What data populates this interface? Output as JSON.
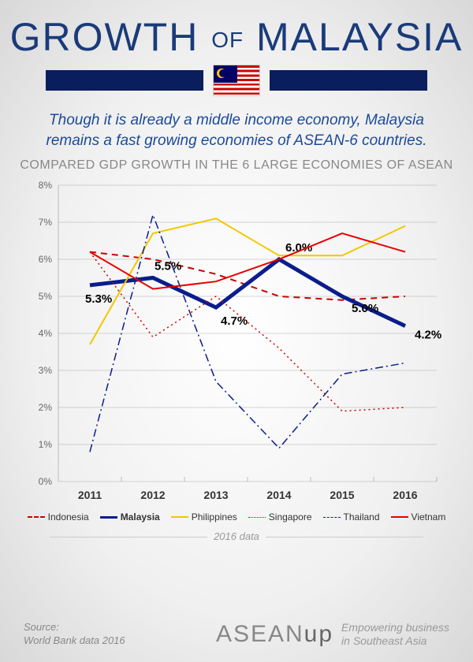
{
  "title_growth": "GROWTH",
  "title_of": "OF",
  "title_country": "MALAYSIA",
  "subtitle": "Though it is already a middle income economy, Malaysia remains a fast growing economies of ASEAN-6 countries.",
  "chart_title": "COMPARED GDP GROWTH IN THE 6 LARGE ECONOMIES OF ASEAN",
  "chart": {
    "type": "line",
    "years": [
      "2011",
      "2012",
      "2013",
      "2014",
      "2015",
      "2016"
    ],
    "ylim": [
      0,
      8
    ],
    "ytick_step": 1,
    "y_suffix": "%",
    "background_color": "transparent",
    "grid_color": "#999999",
    "axis_fontsize": 12,
    "xlabel_fontsize": 14,
    "data_label_fontsize": 15,
    "series": [
      {
        "name": "Indonesia",
        "color": "#cc0000",
        "width": 2,
        "dash": "8,6",
        "values": [
          6.2,
          6.0,
          5.6,
          5.0,
          4.9,
          5.0
        ]
      },
      {
        "name": "Malaysia",
        "color": "#0a1d8c",
        "width": 5,
        "dash": "",
        "values": [
          5.3,
          5.5,
          4.7,
          6.0,
          5.0,
          4.2
        ],
        "labels": [
          "5.3%",
          "5.5%",
          "4.7%",
          "6.0%",
          "5.0%",
          "4.2%"
        ]
      },
      {
        "name": "Philippines",
        "color": "#f2c800",
        "width": 2,
        "dash": "",
        "values": [
          3.7,
          6.7,
          7.1,
          6.1,
          6.1,
          6.9
        ]
      },
      {
        "name": "Singapore",
        "color": "#cc0000",
        "width": 1.5,
        "dash": "2,4",
        "values": [
          6.2,
          3.9,
          5.0,
          3.6,
          1.9,
          2.0
        ]
      },
      {
        "name": "Thailand",
        "color": "#0a1d8c",
        "width": 1.5,
        "dash": "10,4,2,4",
        "values": [
          0.8,
          7.2,
          2.7,
          0.9,
          2.9,
          3.2
        ]
      },
      {
        "name": "Vietnam",
        "color": "#e60000",
        "width": 2,
        "dash": "",
        "values": [
          6.2,
          5.2,
          5.4,
          6.0,
          6.7,
          6.2
        ]
      }
    ]
  },
  "footer_note": "2016 data",
  "source_line1": "Source:",
  "source_line2": "World Bank data 2016",
  "logo_main": "ASEAN",
  "logo_sub": "up",
  "tagline_line1": "Empowering business",
  "tagline_line2": "in Southeast Asia"
}
